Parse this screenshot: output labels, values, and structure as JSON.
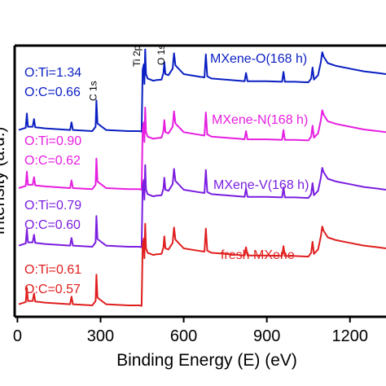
{
  "chart_data": {
    "type": "line",
    "title": "",
    "xlabel": "Binding Energy (E) (eV)",
    "ylabel": "Intensity (a.u.)",
    "xlim": [
      -10,
      1330
    ],
    "ylim": [
      0,
      4.8
    ],
    "x_ticks": [
      0,
      300,
      600,
      900,
      1200
    ],
    "peak_labels": [
      {
        "text": "C 1s",
        "x": 285
      },
      {
        "text": "Ti 2p",
        "x": 455
      },
      {
        "text": "O 1s",
        "x": 530
      }
    ],
    "series": [
      {
        "name": "MXene-O(168 h)",
        "color": "#0a1fc2",
        "offset": 3.18,
        "annotations": [
          "O:Ti=1.34",
          "O:C=0.66"
        ],
        "points": [
          [
            5,
            0.08
          ],
          [
            30,
            0.12
          ],
          [
            34,
            0.38
          ],
          [
            38,
            0.14
          ],
          [
            55,
            0.14
          ],
          [
            60,
            0.28
          ],
          [
            64,
            0.13
          ],
          [
            100,
            0.11
          ],
          [
            190,
            0.08
          ],
          [
            195,
            0.22
          ],
          [
            200,
            0.08
          ],
          [
            270,
            0.06
          ],
          [
            282,
            0.14
          ],
          [
            285,
            0.62
          ],
          [
            289,
            0.2
          ],
          [
            320,
            0.08
          ],
          [
            400,
            0.06
          ],
          [
            440,
            0.06
          ],
          [
            448,
            0.05
          ],
          [
            452,
            1.18
          ],
          [
            456,
            1.28
          ],
          [
            458,
            0.92
          ],
          [
            461,
            1.55
          ],
          [
            464,
            1.1
          ],
          [
            470,
            1.02
          ],
          [
            490,
            0.98
          ],
          [
            500,
            0.99
          ],
          [
            520,
            1.0
          ],
          [
            527,
            1.12
          ],
          [
            530,
            1.32
          ],
          [
            534,
            1.1
          ],
          [
            545,
            1.08
          ],
          [
            560,
            1.2
          ],
          [
            565,
            1.48
          ],
          [
            570,
            1.26
          ],
          [
            600,
            1.1
          ],
          [
            660,
            1.05
          ],
          [
            675,
            1.04
          ],
          [
            680,
            1.46
          ],
          [
            685,
            1.06
          ],
          [
            700,
            1.02
          ],
          [
            800,
            0.98
          ],
          [
            820,
            0.97
          ],
          [
            825,
            1.12
          ],
          [
            830,
            0.97
          ],
          [
            900,
            0.97
          ],
          [
            955,
            0.96
          ],
          [
            960,
            1.14
          ],
          [
            965,
            0.96
          ],
          [
            1000,
            0.96
          ],
          [
            1050,
            0.95
          ],
          [
            1060,
            1.02
          ],
          [
            1065,
            1.22
          ],
          [
            1070,
            1.0
          ],
          [
            1085,
            1.08
          ],
          [
            1095,
            1.32
          ],
          [
            1100,
            1.5
          ],
          [
            1105,
            1.42
          ],
          [
            1120,
            1.3
          ],
          [
            1150,
            1.25
          ],
          [
            1200,
            1.2
          ],
          [
            1250,
            1.15
          ],
          [
            1300,
            1.12
          ],
          [
            1330,
            1.1
          ]
        ]
      },
      {
        "name": "MXene-N(168 h)",
        "color": "#e61ee0",
        "offset": 2.12,
        "annotations": [
          "O:Ti=0.90",
          "O:C=0.62"
        ],
        "points": [
          [
            5,
            0.08
          ],
          [
            30,
            0.12
          ],
          [
            34,
            0.38
          ],
          [
            38,
            0.14
          ],
          [
            55,
            0.14
          ],
          [
            60,
            0.28
          ],
          [
            64,
            0.13
          ],
          [
            100,
            0.11
          ],
          [
            190,
            0.08
          ],
          [
            195,
            0.22
          ],
          [
            200,
            0.08
          ],
          [
            270,
            0.06
          ],
          [
            282,
            0.14
          ],
          [
            285,
            0.62
          ],
          [
            289,
            0.2
          ],
          [
            320,
            0.08
          ],
          [
            400,
            0.06
          ],
          [
            440,
            0.06
          ],
          [
            448,
            0.05
          ],
          [
            452,
            1.18
          ],
          [
            456,
            1.28
          ],
          [
            458,
            0.92
          ],
          [
            461,
            1.55
          ],
          [
            464,
            1.1
          ],
          [
            470,
            1.02
          ],
          [
            490,
            0.98
          ],
          [
            500,
            0.99
          ],
          [
            520,
            1.0
          ],
          [
            527,
            1.12
          ],
          [
            530,
            1.32
          ],
          [
            534,
            1.1
          ],
          [
            545,
            1.08
          ],
          [
            560,
            1.2
          ],
          [
            565,
            1.48
          ],
          [
            570,
            1.26
          ],
          [
            600,
            1.1
          ],
          [
            660,
            1.05
          ],
          [
            675,
            1.04
          ],
          [
            680,
            1.46
          ],
          [
            685,
            1.06
          ],
          [
            700,
            1.02
          ],
          [
            800,
            0.98
          ],
          [
            820,
            0.97
          ],
          [
            825,
            1.12
          ],
          [
            830,
            0.97
          ],
          [
            900,
            0.97
          ],
          [
            955,
            0.96
          ],
          [
            960,
            1.14
          ],
          [
            965,
            0.96
          ],
          [
            1000,
            0.96
          ],
          [
            1050,
            0.95
          ],
          [
            1060,
            1.02
          ],
          [
            1065,
            1.22
          ],
          [
            1070,
            1.0
          ],
          [
            1085,
            1.08
          ],
          [
            1095,
            1.32
          ],
          [
            1100,
            1.5
          ],
          [
            1105,
            1.42
          ],
          [
            1120,
            1.3
          ],
          [
            1150,
            1.25
          ],
          [
            1200,
            1.2
          ],
          [
            1250,
            1.15
          ],
          [
            1300,
            1.12
          ],
          [
            1330,
            1.1
          ]
        ]
      },
      {
        "name": "MXene-V(168 h)",
        "color": "#7a1ee0",
        "offset": 1.07,
        "annotations": [
          "O:Ti=0.79",
          "O:C=0.60"
        ],
        "points": [
          [
            5,
            0.08
          ],
          [
            30,
            0.12
          ],
          [
            34,
            0.38
          ],
          [
            38,
            0.14
          ],
          [
            55,
            0.14
          ],
          [
            60,
            0.28
          ],
          [
            64,
            0.13
          ],
          [
            100,
            0.11
          ],
          [
            190,
            0.08
          ],
          [
            195,
            0.22
          ],
          [
            200,
            0.08
          ],
          [
            270,
            0.06
          ],
          [
            282,
            0.14
          ],
          [
            285,
            0.62
          ],
          [
            289,
            0.2
          ],
          [
            320,
            0.08
          ],
          [
            400,
            0.06
          ],
          [
            440,
            0.06
          ],
          [
            448,
            0.05
          ],
          [
            452,
            1.18
          ],
          [
            456,
            1.28
          ],
          [
            458,
            0.92
          ],
          [
            461,
            1.55
          ],
          [
            464,
            1.1
          ],
          [
            470,
            1.02
          ],
          [
            490,
            0.98
          ],
          [
            500,
            0.99
          ],
          [
            520,
            1.0
          ],
          [
            527,
            1.12
          ],
          [
            530,
            1.32
          ],
          [
            534,
            1.1
          ],
          [
            545,
            1.08
          ],
          [
            560,
            1.2
          ],
          [
            565,
            1.48
          ],
          [
            570,
            1.26
          ],
          [
            600,
            1.1
          ],
          [
            660,
            1.05
          ],
          [
            675,
            1.04
          ],
          [
            680,
            1.46
          ],
          [
            685,
            1.06
          ],
          [
            700,
            1.02
          ],
          [
            800,
            0.98
          ],
          [
            820,
            0.97
          ],
          [
            825,
            1.12
          ],
          [
            830,
            0.97
          ],
          [
            900,
            0.97
          ],
          [
            955,
            0.96
          ],
          [
            960,
            1.14
          ],
          [
            965,
            0.96
          ],
          [
            1000,
            0.96
          ],
          [
            1050,
            0.95
          ],
          [
            1060,
            1.02
          ],
          [
            1065,
            1.22
          ],
          [
            1070,
            1.0
          ],
          [
            1085,
            1.08
          ],
          [
            1095,
            1.32
          ],
          [
            1100,
            1.5
          ],
          [
            1105,
            1.42
          ],
          [
            1120,
            1.3
          ],
          [
            1150,
            1.25
          ],
          [
            1200,
            1.2
          ],
          [
            1250,
            1.15
          ],
          [
            1300,
            1.12
          ],
          [
            1330,
            1.1
          ]
        ]
      },
      {
        "name": "fresh MXene",
        "color": "#e01e1e",
        "offset": 0.0,
        "annotations": [
          "O:Ti=0.61",
          "O:C=0.57"
        ],
        "points": [
          [
            5,
            0.08
          ],
          [
            30,
            0.12
          ],
          [
            34,
            0.38
          ],
          [
            38,
            0.14
          ],
          [
            55,
            0.14
          ],
          [
            60,
            0.28
          ],
          [
            64,
            0.13
          ],
          [
            100,
            0.11
          ],
          [
            190,
            0.08
          ],
          [
            195,
            0.22
          ],
          [
            200,
            0.08
          ],
          [
            270,
            0.06
          ],
          [
            282,
            0.14
          ],
          [
            285,
            0.62
          ],
          [
            289,
            0.2
          ],
          [
            320,
            0.08
          ],
          [
            400,
            0.06
          ],
          [
            440,
            0.06
          ],
          [
            448,
            0.05
          ],
          [
            452,
            1.18
          ],
          [
            456,
            1.28
          ],
          [
            458,
            0.92
          ],
          [
            461,
            1.55
          ],
          [
            464,
            1.1
          ],
          [
            470,
            1.02
          ],
          [
            490,
            0.98
          ],
          [
            500,
            0.99
          ],
          [
            520,
            1.0
          ],
          [
            527,
            1.12
          ],
          [
            530,
            1.32
          ],
          [
            534,
            1.1
          ],
          [
            545,
            1.08
          ],
          [
            560,
            1.2
          ],
          [
            565,
            1.48
          ],
          [
            570,
            1.26
          ],
          [
            600,
            1.1
          ],
          [
            660,
            1.05
          ],
          [
            675,
            1.04
          ],
          [
            680,
            1.46
          ],
          [
            685,
            1.06
          ],
          [
            700,
            1.02
          ],
          [
            800,
            0.98
          ],
          [
            820,
            0.97
          ],
          [
            825,
            1.12
          ],
          [
            830,
            0.97
          ],
          [
            900,
            0.97
          ],
          [
            955,
            0.96
          ],
          [
            960,
            1.14
          ],
          [
            965,
            0.96
          ],
          [
            1000,
            0.96
          ],
          [
            1050,
            0.95
          ],
          [
            1060,
            1.02
          ],
          [
            1065,
            1.22
          ],
          [
            1070,
            1.0
          ],
          [
            1085,
            1.08
          ],
          [
            1095,
            1.32
          ],
          [
            1100,
            1.5
          ],
          [
            1105,
            1.42
          ],
          [
            1120,
            1.3
          ],
          [
            1150,
            1.25
          ],
          [
            1200,
            1.2
          ],
          [
            1250,
            1.15
          ],
          [
            1300,
            1.12
          ],
          [
            1330,
            1.1
          ]
        ]
      }
    ]
  }
}
